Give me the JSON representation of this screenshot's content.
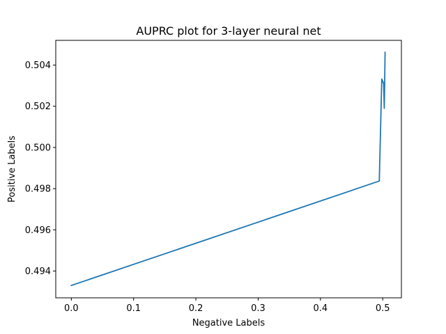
{
  "chart_data": {
    "type": "line",
    "title": "AUPRC plot for 3-layer neural net",
    "xlabel": "Negative Labels",
    "ylabel": "Positive Labels",
    "xlim": [
      -0.025,
      0.53
    ],
    "ylim": [
      0.4927,
      0.5052
    ],
    "xticks": [
      0.0,
      0.1,
      0.2,
      0.3,
      0.4,
      0.5
    ],
    "xtick_labels": [
      "0.0",
      "0.1",
      "0.2",
      "0.3",
      "0.4",
      "0.5"
    ],
    "yticks": [
      0.494,
      0.496,
      0.498,
      0.5,
      0.502,
      0.504
    ],
    "ytick_labels": [
      "0.494",
      "0.496",
      "0.498",
      "0.500",
      "0.502",
      "0.504"
    ],
    "grid": false,
    "series": [
      {
        "color": "#1f77b4",
        "x": [
          0.0,
          0.4945,
          0.4985,
          0.5015,
          0.5025,
          0.503,
          0.5038
        ],
        "y": [
          0.4933,
          0.49837,
          0.50332,
          0.5031,
          0.5019,
          0.5029,
          0.50462
        ]
      }
    ]
  }
}
